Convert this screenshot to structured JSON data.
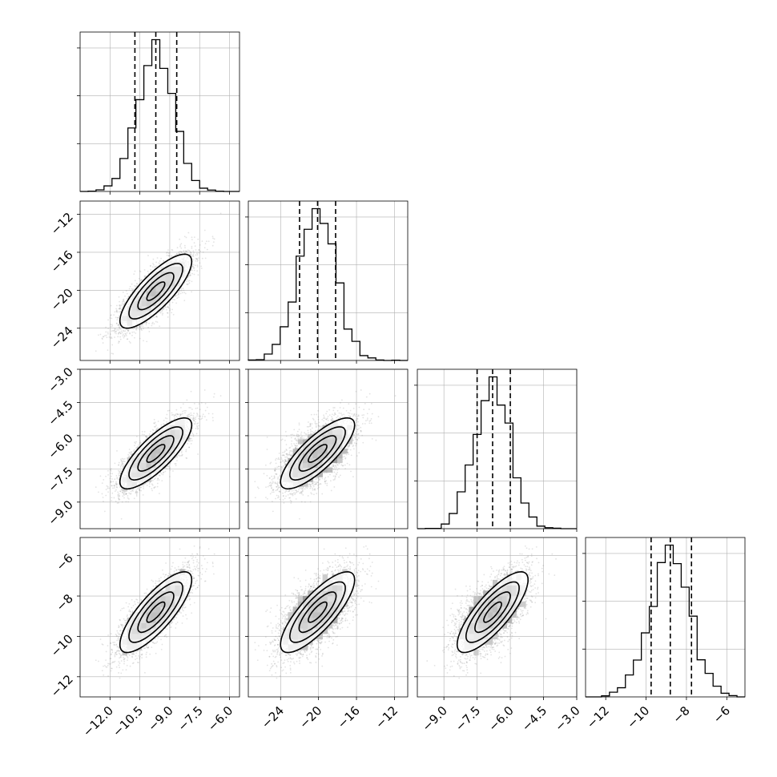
{
  "chart_data": {
    "type": "corner",
    "variables": [
      {
        "name": "",
        "range": [
          -13.5,
          -5.5
        ],
        "ticks": [
          -12.0,
          -10.5,
          -9.0,
          -7.5,
          -6.0
        ],
        "tick_labels": [
          "−12.0",
          "−10.5",
          "−9.0",
          "−7.5",
          "−6.0"
        ],
        "mean": -9.7,
        "sd": 0.9,
        "quantiles": [
          -10.75,
          -9.7,
          -8.65
        ]
      },
      {
        "name": "",
        "range": [
          -27.4,
          -10.6
        ],
        "ticks": [
          -24,
          -20,
          -16,
          -12
        ],
        "tick_labels": [
          "−24",
          "−20",
          "−16",
          "−12"
        ],
        "mean": -20.1,
        "sd": 1.95,
        "quantiles": [
          -22.0,
          -20.1,
          -18.2
        ]
      },
      {
        "name": "",
        "range": [
          -10.2,
          -3.0
        ],
        "ticks": [
          -9.0,
          -7.5,
          -6.0,
          -4.5,
          -3.0
        ],
        "tick_labels": [
          "−9.0",
          "−7.5",
          "−6.0",
          "−4.5",
          "−3.0"
        ],
        "mean": -6.8,
        "sd": 0.8,
        "quantiles": [
          -7.5,
          -6.8,
          -6.0
        ]
      },
      {
        "name": "",
        "range": [
          -13.0,
          -5.1
        ],
        "ticks": [
          -12,
          -10,
          -8,
          -6
        ],
        "tick_labels": [
          "−12",
          "−10",
          "−8",
          "−6"
        ],
        "mean": -8.8,
        "sd": 1.0,
        "quantiles": [
          -9.75,
          -8.8,
          -7.75
        ]
      }
    ],
    "correlation": 0.8,
    "bins": 20,
    "levels": [
      0.118,
      0.393,
      0.675,
      0.865
    ],
    "grid": true,
    "xlabel": "",
    "ylabel": ""
  },
  "colors": {
    "line": "#000000",
    "grid": "#b0b0b0",
    "points": "#808080"
  }
}
